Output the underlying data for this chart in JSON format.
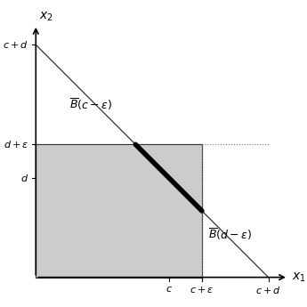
{
  "c": 4,
  "d": 3,
  "eps": 1,
  "bg_color": "#ffffff",
  "gray_fill": "#cccccc",
  "gray_edge": "#333333",
  "thick_line_color": "#000000",
  "thin_line_color": "#333333",
  "dot_line_color": "#777777",
  "label_B_c_eps": "$\\overline{B}(c - \\varepsilon)$",
  "label_B_d_eps": "$\\overline{B}(d - \\varepsilon)$",
  "xlabel": "$x_1$",
  "ylabel": "$x_2$",
  "tick_labels_x": [
    "$c$",
    "$c+\\varepsilon$",
    "$c+d$"
  ],
  "tick_labels_y": [
    "$d$",
    "$d+\\varepsilon$",
    "$c+d$"
  ],
  "figsize": [
    3.45,
    3.45
  ],
  "dpi": 100
}
